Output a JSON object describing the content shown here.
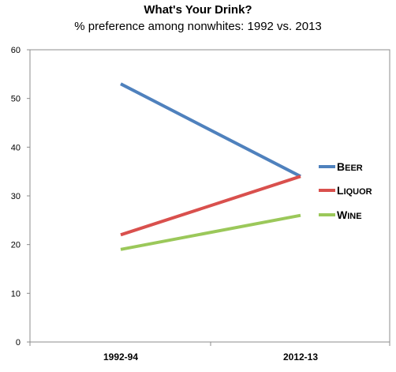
{
  "chart_data": {
    "type": "line",
    "title": "What's Your Drink?",
    "subtitle": "% preference among nonwhites: 1992 vs. 2013",
    "categories": [
      "1992-94",
      "2012-13"
    ],
    "ylim": [
      0,
      60
    ],
    "yticks": [
      "0",
      "10",
      "20",
      "30",
      "40",
      "50",
      "60"
    ],
    "grid": false,
    "legend": "right",
    "series": [
      {
        "name": "Beer",
        "values": [
          53,
          34
        ],
        "color": "#4f81bd"
      },
      {
        "name": "Liquor",
        "values": [
          22,
          34
        ],
        "color": "#d9504d"
      },
      {
        "name": "Wine",
        "values": [
          19,
          26
        ],
        "color": "#9bc85a"
      }
    ]
  }
}
